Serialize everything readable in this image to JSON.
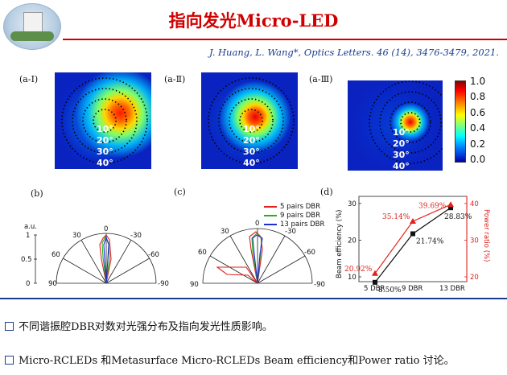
{
  "header": {
    "title": "指向发光Micro-LED",
    "citation": "J. Huang, L. Wang*, Optics Letters. 46 (14), 3476-3479, 2021."
  },
  "panels": {
    "a1": "(a-Ⅰ)",
    "a2": "(a-Ⅱ)",
    "a3": "(a-Ⅲ)",
    "b": "(b)",
    "c": "(c)",
    "d": "(d)"
  },
  "far_field": {
    "angles": [
      "10°",
      "20°",
      "30°",
      "40°"
    ],
    "colorbar_ticks": [
      "1.0",
      "0.8",
      "0.6",
      "0.4",
      "0.2",
      "0.0"
    ]
  },
  "polar_b": {
    "ylabel": "a.u.",
    "yticks": [
      "1",
      "0.5",
      "0"
    ],
    "angle_labels": [
      "0",
      "30",
      "-30",
      "60",
      "-60",
      "90",
      "-90"
    ]
  },
  "polar_c": {
    "angle_labels": [
      "0",
      "30",
      "-30",
      "60",
      "-60",
      "90",
      "-90"
    ],
    "legend": [
      {
        "label": "5 pairs DBR",
        "color": "#e0201b"
      },
      {
        "label": "9 pairs DBR",
        "color": "#22b21f"
      },
      {
        "label": "13 pairs DBR",
        "color": "#1f2fd6"
      }
    ]
  },
  "chart_data": {
    "type": "line",
    "categories": [
      "5 DBR",
      "9 DBR",
      "13 DBR"
    ],
    "xlabel": "",
    "ylabel": "Beam efficiency (%)",
    "y2label": "Power ratio (%)",
    "ylim": [
      10,
      30
    ],
    "y2lim": [
      20,
      40
    ],
    "yticks": [
      "10",
      "20",
      "30"
    ],
    "y2ticks": [
      "20",
      "30",
      "40"
    ],
    "series": [
      {
        "values": [
          8.5,
          21.74,
          28.83
        ],
        "labels": [
          "8.50%",
          "21.74%",
          "28.83%"
        ],
        "color": "#111111",
        "axis": "left",
        "marker": "square"
      },
      {
        "values": [
          20.92,
          35.14,
          39.69
        ],
        "labels": [
          "20.92%",
          "35.14%",
          "39.69%"
        ],
        "color": "#e0201b",
        "axis": "right",
        "marker": "triangle"
      }
    ]
  },
  "bullets": [
    "不同谐振腔DBR对数对光强分布及指向发光性质影响。",
    "Micro-RCLEDs 和Metasurface Micro-RCLEDs Beam efficiency和Power ratio 讨论。"
  ]
}
